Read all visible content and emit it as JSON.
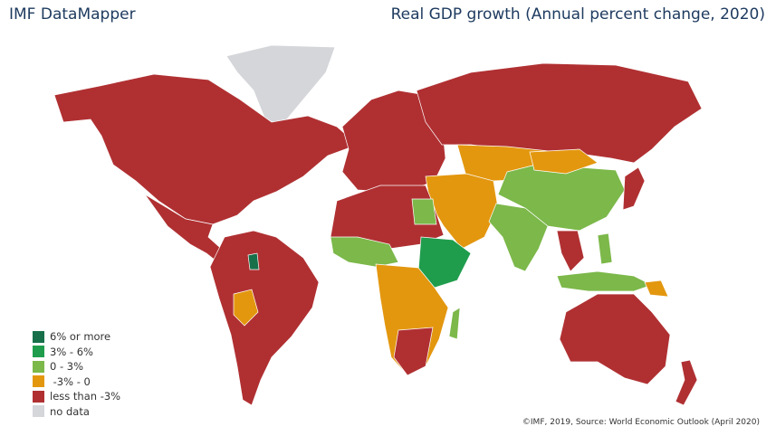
{
  "header": {
    "brand": "IMF DataMapper",
    "title": "Real GDP growth (Annual percent change, 2020)"
  },
  "legend": [
    {
      "label": "6% or more",
      "color": "#17704a"
    },
    {
      "label": "3% - 6%",
      "color": "#1f9d4d"
    },
    {
      "label": "0 - 3%",
      "color": "#7cb84a"
    },
    {
      "label": " -3% - 0",
      "color": "#e3970f"
    },
    {
      "label": "less than -3%",
      "color": "#b03032"
    },
    {
      "label": "no data",
      "color": "#d5d6da"
    }
  ],
  "source": "©IMF, 2019, Source: World Economic Outlook (April 2020)"
}
